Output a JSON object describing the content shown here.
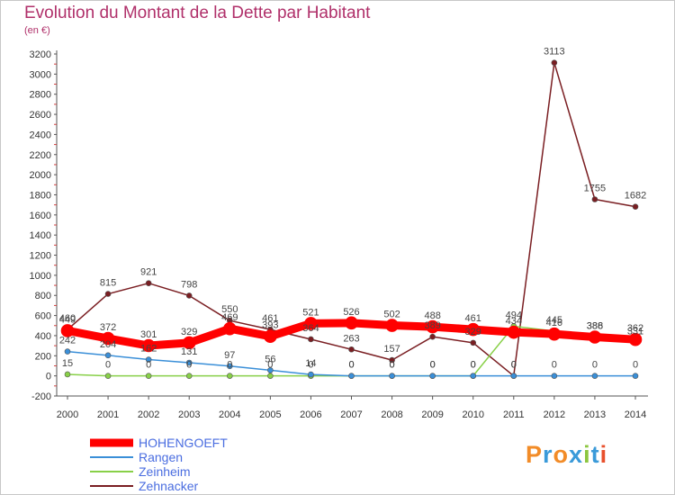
{
  "title": "Evolution du Montant de la Dette par Habitant",
  "unit_label": "(en €)",
  "logo": {
    "text": "Proxiti",
    "colors": [
      "#f28c28",
      "#3a9ad9",
      "#f28c28",
      "#3a9ad9",
      "#8cc63f",
      "#3a9ad9",
      "#e8502c"
    ]
  },
  "chart_data": {
    "type": "line",
    "x": [
      "2000",
      "2001",
      "2002",
      "2003",
      "2004",
      "2005",
      "2006",
      "2007",
      "2008",
      "2009",
      "2010",
      "2011",
      "2012",
      "2013",
      "2014"
    ],
    "ylim": [
      -200,
      3200
    ],
    "yticks": [
      -200,
      0,
      200,
      400,
      600,
      800,
      1000,
      1200,
      1400,
      1600,
      1800,
      2000,
      2200,
      2400,
      2600,
      2800,
      3000,
      3200
    ],
    "grid": false,
    "series": [
      {
        "name": "HOHENGOEFT",
        "color": "#ff0000",
        "values": [
          449,
          372,
          301,
          329,
          469,
          393,
          521,
          526,
          502,
          488,
          461,
          434,
          416,
          386,
          362
        ]
      },
      {
        "name": "Rangen",
        "color": "#3a8fd8",
        "values": [
          242,
          204,
          162,
          131,
          97,
          56,
          14,
          0,
          0,
          0,
          0,
          0,
          0,
          0,
          0
        ]
      },
      {
        "name": "Zeinheim",
        "color": "#88d048",
        "values": [
          15,
          0,
          0,
          0,
          0,
          0,
          0,
          0,
          0,
          0,
          0,
          494,
          445,
          388,
          331
        ]
      },
      {
        "name": "Zehnacker",
        "color": "#7a1e22",
        "values": [
          460,
          815,
          921,
          798,
          550,
          461,
          364,
          263,
          157,
          389,
          329,
          0,
          3113,
          1755,
          1682
        ]
      }
    ]
  }
}
